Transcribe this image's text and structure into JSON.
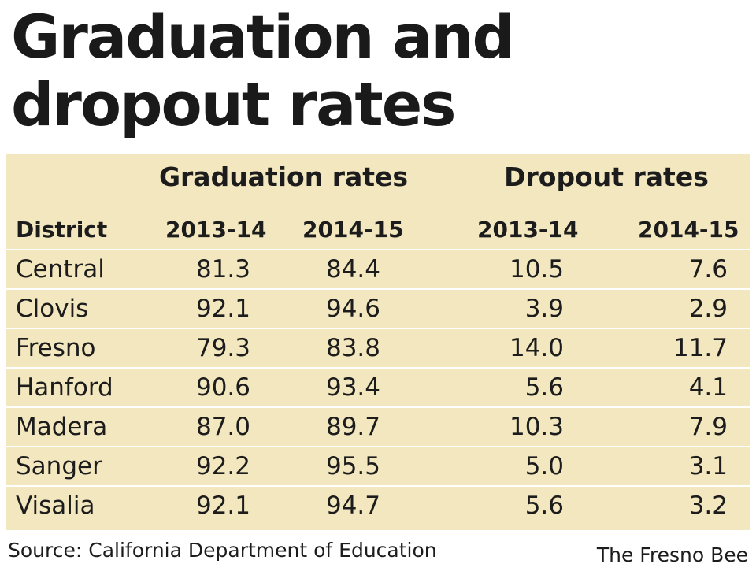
{
  "title_line1": "Graduation and",
  "title_line2": "dropout rates",
  "colors": {
    "panel_background": "#f3e7bf",
    "row_divider": "#ffffff",
    "text": "#1c1c1c"
  },
  "source": "Source: California Department of Education",
  "credit": "The Fresno Bee",
  "chart_data": {
    "type": "table",
    "title": "Graduation and dropout rates",
    "column_groups": [
      {
        "name": "Graduation rates",
        "columns": [
          "2013-14",
          "2014-15"
        ]
      },
      {
        "name": "Dropout rates",
        "columns": [
          "2013-14",
          "2014-15"
        ]
      }
    ],
    "headers": [
      "District",
      "2013-14",
      "2014-15",
      "2013-14",
      "2014-15"
    ],
    "rows": [
      {
        "district": "Central",
        "values": [
          "81.3",
          "84.4",
          "10.5",
          "7.6"
        ]
      },
      {
        "district": "Clovis",
        "values": [
          "92.1",
          "94.6",
          "3.9",
          "2.9"
        ]
      },
      {
        "district": "Fresno",
        "values": [
          "79.3",
          "83.8",
          "14.0",
          "11.7"
        ]
      },
      {
        "district": "Hanford",
        "values": [
          "90.6",
          "93.4",
          "5.6",
          "4.1"
        ]
      },
      {
        "district": "Madera",
        "values": [
          "87.0",
          "89.7",
          "10.3",
          "7.9"
        ]
      },
      {
        "district": "Sanger",
        "values": [
          "92.2",
          "95.5",
          "5.0",
          "3.1"
        ]
      },
      {
        "district": "Visalia",
        "values": [
          "92.1",
          "94.7",
          "5.6",
          "3.2"
        ]
      }
    ]
  }
}
